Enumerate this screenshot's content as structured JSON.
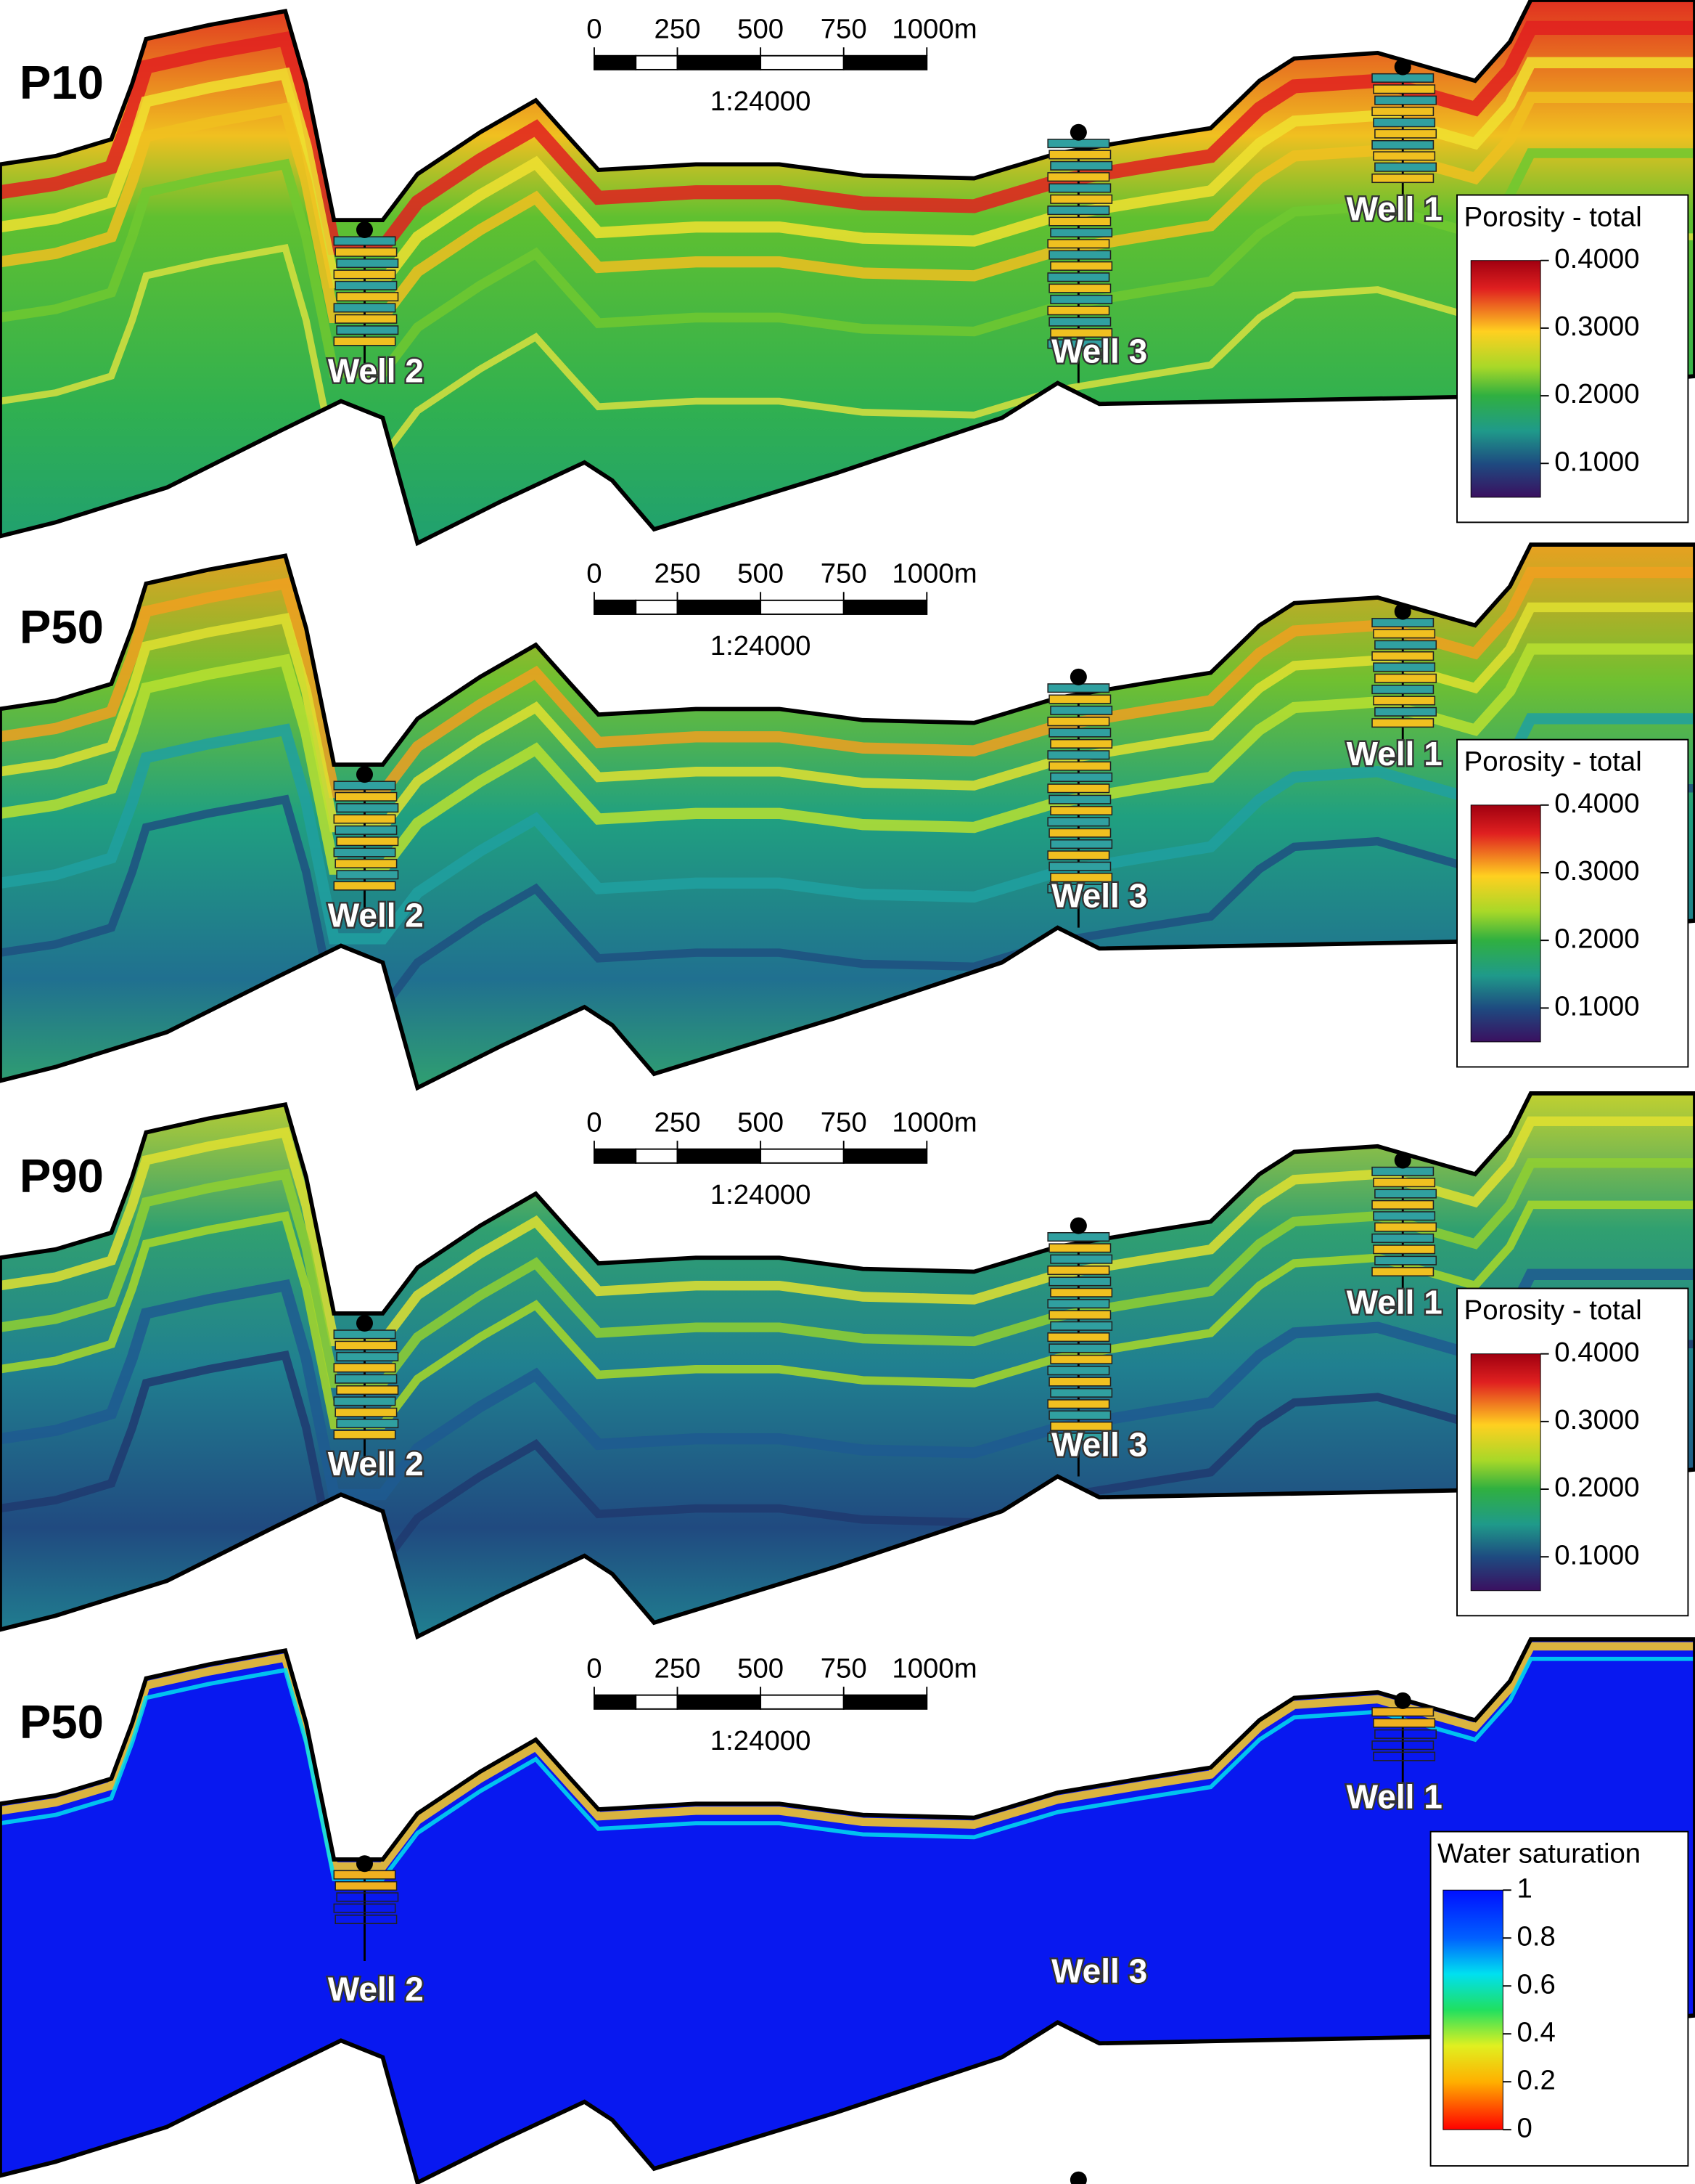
{
  "panels": [
    {
      "label": "P10",
      "scale_bar": {
        "xlim": [
          0,
          1000
        ],
        "ticks": [
          0,
          250,
          500,
          750,
          {
            "value": 1000,
            "label": "1000m"
          }
        ],
        "ratio": "1:24000"
      },
      "wells": [
        "Well 2",
        "Well 3",
        "Well 1"
      ],
      "colorbar": {
        "title": "Porosity - total",
        "lim": [
          0.05,
          0.4
        ],
        "ticks": [
          {
            "value": 0.4,
            "label": "0.4000"
          },
          {
            "value": 0.3,
            "label": "0.3000"
          },
          {
            "value": 0.2,
            "label": "0.2000"
          },
          {
            "value": 0.1,
            "label": "0.1000"
          }
        ]
      }
    },
    {
      "label": "P50",
      "scale_bar": {
        "xlim": [
          0,
          1000
        ],
        "ticks": [
          0,
          250,
          500,
          750,
          {
            "value": 1000,
            "label": "1000m"
          }
        ],
        "ratio": "1:24000"
      },
      "wells": [
        "Well 2",
        "Well 3",
        "Well 1"
      ],
      "colorbar": {
        "title": "Porosity - total",
        "lim": [
          0.05,
          0.4
        ],
        "ticks": [
          {
            "value": 0.4,
            "label": "0.4000"
          },
          {
            "value": 0.3,
            "label": "0.3000"
          },
          {
            "value": 0.2,
            "label": "0.2000"
          },
          {
            "value": 0.1,
            "label": "0.1000"
          }
        ]
      }
    },
    {
      "label": "P90",
      "scale_bar": {
        "xlim": [
          0,
          1000
        ],
        "ticks": [
          0,
          250,
          500,
          750,
          {
            "value": 1000,
            "label": "1000m"
          }
        ],
        "ratio": "1:24000"
      },
      "wells": [
        "Well 2",
        "Well 3",
        "Well 1"
      ],
      "colorbar": {
        "title": "Porosity - total",
        "lim": [
          0.05,
          0.4
        ],
        "ticks": [
          {
            "value": 0.4,
            "label": "0.4000"
          },
          {
            "value": 0.3,
            "label": "0.3000"
          },
          {
            "value": 0.2,
            "label": "0.2000"
          },
          {
            "value": 0.1,
            "label": "0.1000"
          }
        ]
      }
    },
    {
      "label": "P50",
      "scale_bar": {
        "xlim": [
          0,
          1000
        ],
        "ticks": [
          0,
          250,
          500,
          750,
          {
            "value": 1000,
            "label": "1000m"
          }
        ],
        "ratio": "1:24000"
      },
      "wells": [
        "Well 2",
        "Well 3",
        "Well 1"
      ],
      "colorbar": {
        "title": "Water saturation",
        "lim": [
          0,
          1
        ],
        "ticks": [
          1,
          0.8,
          0.6,
          0.4,
          0.2,
          0
        ]
      }
    }
  ]
}
